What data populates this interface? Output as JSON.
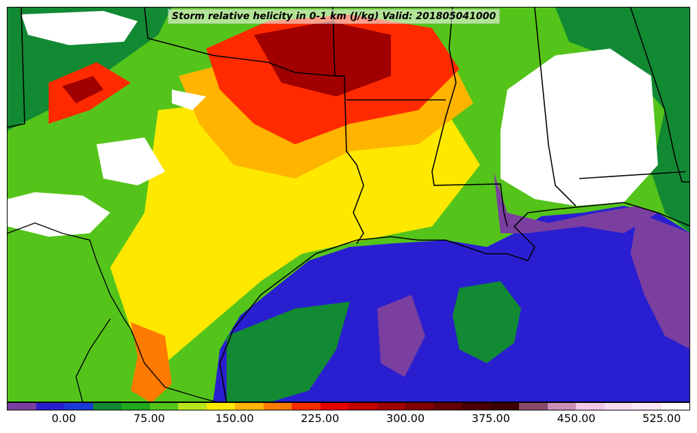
{
  "title": "Storm relative helicity in 0-1 km (J/kg) Valid: 201805041000",
  "colorbar": {
    "colors": [
      "#7b3fa0",
      "#2a1fd0",
      "#1a3ad6",
      "#118a33",
      "#1fa81f",
      "#55c41a",
      "#b8e61a",
      "#ffe800",
      "#ffb400",
      "#ff7a00",
      "#ff2a00",
      "#e60000",
      "#c40000",
      "#a00000",
      "#800000",
      "#640000",
      "#4a0000",
      "#3a0000",
      "#8a4a6a",
      "#c890b8",
      "#f0c8e8",
      "#f8dcf2",
      "#fbe8f6",
      "#ffffff"
    ],
    "tick_labels": [
      "0.00",
      "75.00",
      "150.00",
      "225.00",
      "300.00",
      "375.00",
      "450.00",
      "525.00"
    ],
    "tick_positions": [
      2,
      5,
      8,
      11,
      14,
      17,
      20,
      23
    ]
  },
  "fields": {
    "ocean_color": "#2a1fd0",
    "land_low": "#118a33",
    "land_mid": "#55c41a",
    "land_high": "#ffe800",
    "hot": "#ff2a00",
    "hotter": "#a00000",
    "purple": "#7b3fa0",
    "blank": "#ffffff"
  }
}
